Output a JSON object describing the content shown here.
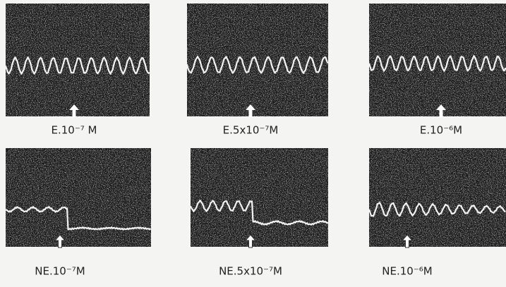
{
  "panels": [
    {
      "label": "E.10⁻⁷ M"
    },
    {
      "label": "E.5x10⁻⁷M"
    },
    {
      "label": "E.10⁻⁶M"
    },
    {
      "label": "NE.10⁻⁷M"
    },
    {
      "label": "NE.5x10⁻⁷M"
    },
    {
      "label": "NE.10⁻⁶M"
    }
  ]
}
